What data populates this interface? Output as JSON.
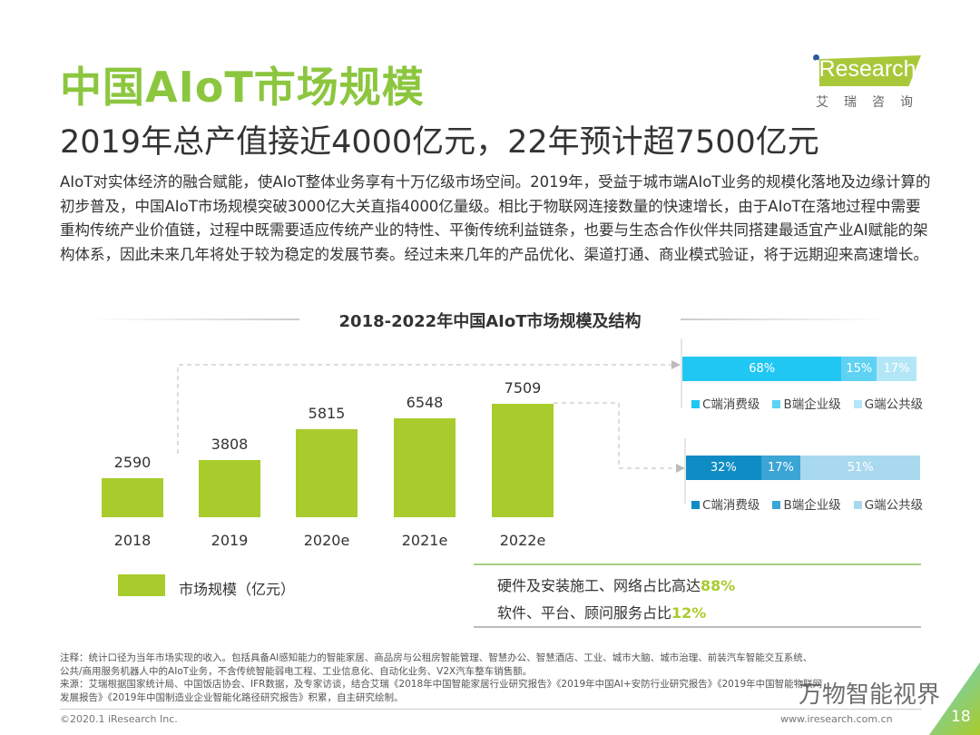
{
  "title": "中国AIoT市场规模",
  "subtitle": "2019年总产值接近4000亿元，22年预计超7500亿元",
  "body": "AIoT对实体经济的融合赋能，使AIoT整体业务享有十万亿级市场空间。2019年，受益于城市端AIoT业务的规模化落地及边缘计算的初步普及，中国AIoT市场规模突破3000亿大关直指4000亿量级。相比于物联网连接数量的快速增长，由于AIoT在落地过程中需要重构传统产业价值链，过程中既需要适应传统产业的特性、平衡传统利益链条，也要与生态合作伙伴共同搭建最适宜产业AI赋能的架构体系，因此未来几年将处于较为稳定的发展节奏。经过未来几年的产品优化、渠道打通、商业模式验证，将于远期迎来高速增长。",
  "logo": {
    "word": "iResearch",
    "cn": "艾瑞咨询"
  },
  "chart_data": [
    {
      "type": "bar",
      "title": "2018-2022年中国AIoT市场规模及结构",
      "categories": [
        "2018",
        "2019",
        "2020e",
        "2021e",
        "2022e"
      ],
      "values": [
        2590,
        3808,
        5815,
        6548,
        7509
      ],
      "series": [
        {
          "name": "市场规模（亿元）",
          "values": [
            2590,
            3808,
            5815,
            6548,
            7509
          ]
        }
      ],
      "legend_label": "市场规模（亿元）",
      "color": "#a8cc2c",
      "grid": false
    },
    {
      "type": "bar",
      "stacked": true,
      "orientation": "horizontal",
      "categories": [
        "2019"
      ],
      "series": [
        {
          "name": "C端消费级",
          "values": [
            68
          ],
          "label": "68%",
          "color": "#21c7f3"
        },
        {
          "name": "B端企业级",
          "values": [
            15
          ],
          "label": "15%",
          "color": "#5dd2f3"
        },
        {
          "name": "G端公共级",
          "values": [
            17
          ],
          "label": "17%",
          "color": "#b3e7f7"
        }
      ]
    },
    {
      "type": "bar",
      "stacked": true,
      "orientation": "horizontal",
      "categories": [
        "2022e"
      ],
      "series": [
        {
          "name": "C端消费级",
          "values": [
            32
          ],
          "label": "32%",
          "color": "#0f8cc4"
        },
        {
          "name": "B端企业级",
          "values": [
            17
          ],
          "label": "17%",
          "color": "#3ba5d6"
        },
        {
          "name": "G端公共级",
          "values": [
            51
          ],
          "label": "51%",
          "color": "#a9d9ee"
        }
      ]
    }
  ],
  "notes": {
    "hw_text": "硬件及安装施工、网络占比高达",
    "hw_value": "88%",
    "sw_text": "软件、平台、顾问服务占比",
    "sw_value": "12%",
    "accent": "#a8cc2c"
  },
  "footnote": {
    "note1": "注释：统计口径为当年市场实现的收入。包括具备AI感知能力的智能家居、商品房与公租房智能管理、智慧办公、智慧酒店、工业、城市大脑、城市治理、前装汽车智能交互系统、",
    "note2": "公共/商用服务机器人中的AIoT业务，不含传统智能弱电工程、工业信息化、自动化业务、V2X汽车整车销售额。",
    "src1": "来源：艾瑞根据国家统计局、中国饭店协会、IFR数据，及专家访谈，结合艾瑞《2018年中国智能家居行业研究报告》《2019年中国AI+安防行业研究报告》《2019年中国智能物联网",
    "src2": "发展报告》《2019年中国制造业企业智能化路径研究报告》积累，自主研究绘制。"
  },
  "footer": {
    "copyright": "©2020.1 iResearch Inc.",
    "url": "www.iresearch.com.cn",
    "page": "18",
    "watermark": "万物智能视界"
  }
}
